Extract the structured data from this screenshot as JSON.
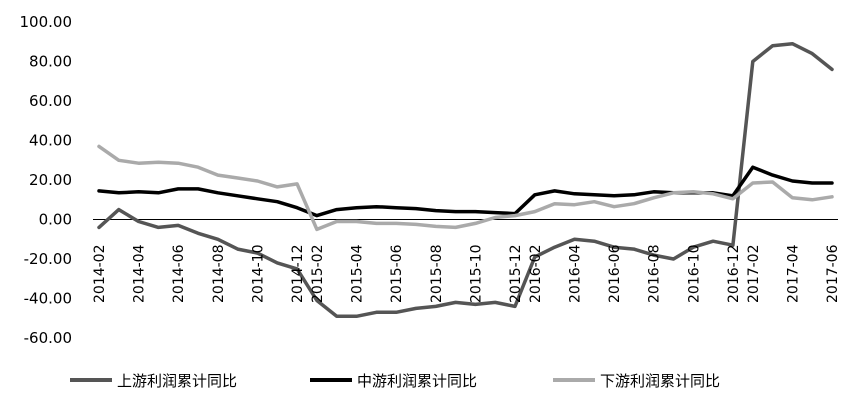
{
  "chart_data": {
    "type": "line",
    "title": "",
    "xlabel": "",
    "ylabel": "",
    "ylim": [
      -60,
      100
    ],
    "yticks": [
      "100.00",
      "80.00",
      "60.00",
      "40.00",
      "20.00",
      "0.00",
      "-20.00",
      "-40.00",
      "-60.00"
    ],
    "grid": false,
    "legend_position": "bottom",
    "x": [
      "2014-02",
      "2014-03",
      "2014-04",
      "2014-05",
      "2014-06",
      "2014-07",
      "2014-08",
      "2014-09",
      "2014-10",
      "2014-11",
      "2014-12",
      "2015-02",
      "2015-03",
      "2015-04",
      "2015-05",
      "2015-06",
      "2015-07",
      "2015-08",
      "2015-09",
      "2015-10",
      "2015-11",
      "2015-12",
      "2016-02",
      "2016-03",
      "2016-04",
      "2016-05",
      "2016-06",
      "2016-07",
      "2016-08",
      "2016-09",
      "2016-10",
      "2016-11",
      "2016-12",
      "2017-02",
      "2017-03",
      "2017-04",
      "2017-05",
      "2017-06"
    ],
    "x_tick_labels": [
      "2014-02",
      "2014-04",
      "2014-06",
      "2014-08",
      "2014-10",
      "2014-12",
      "2015-02",
      "2015-04",
      "2015-06",
      "2015-08",
      "2015-10",
      "2015-12",
      "2016-02",
      "2016-04",
      "2016-06",
      "2016-08",
      "2016-10",
      "2016-12",
      "2017-02",
      "2017-04",
      "2017-06"
    ],
    "series": [
      {
        "name": "上游利润累计同比",
        "color": "#555555",
        "values": [
          -4,
          5,
          -1,
          -4,
          -3,
          -7,
          -10,
          -15,
          -17,
          -22,
          -25,
          -41,
          -49,
          -49,
          -47,
          -47,
          -45,
          -44,
          -42,
          -43,
          -42,
          -44,
          -19,
          -14,
          -10,
          -11,
          -14,
          -15,
          -18,
          -20,
          -14,
          -11,
          -13,
          80,
          88,
          89,
          84,
          76
        ]
      },
      {
        "name": "中游利润累计同比",
        "color": "#000000",
        "values": [
          14.5,
          13.5,
          14,
          13.5,
          15.5,
          15.5,
          13.5,
          12,
          10.5,
          9,
          6,
          2,
          5,
          6,
          6.5,
          6,
          5.5,
          4.5,
          4,
          4,
          3.5,
          3,
          12.5,
          14.5,
          13,
          12.5,
          12,
          12.5,
          14,
          13.5,
          13.5,
          13.5,
          12,
          26.5,
          22.5,
          19.5,
          18.5,
          18.5
        ]
      },
      {
        "name": "下游利润累计同比",
        "color": "#aaaaaa",
        "values": [
          37,
          30,
          28.5,
          29,
          28.5,
          26.5,
          22.5,
          21,
          19.5,
          16.5,
          18,
          -5,
          -1,
          -1,
          -2,
          -2,
          -2.5,
          -3.5,
          -4,
          -2,
          1,
          2,
          4,
          8,
          7.5,
          9,
          6.5,
          8,
          11,
          13.5,
          14,
          13,
          10.5,
          18.5,
          19,
          11,
          10,
          11.5
        ]
      }
    ]
  }
}
